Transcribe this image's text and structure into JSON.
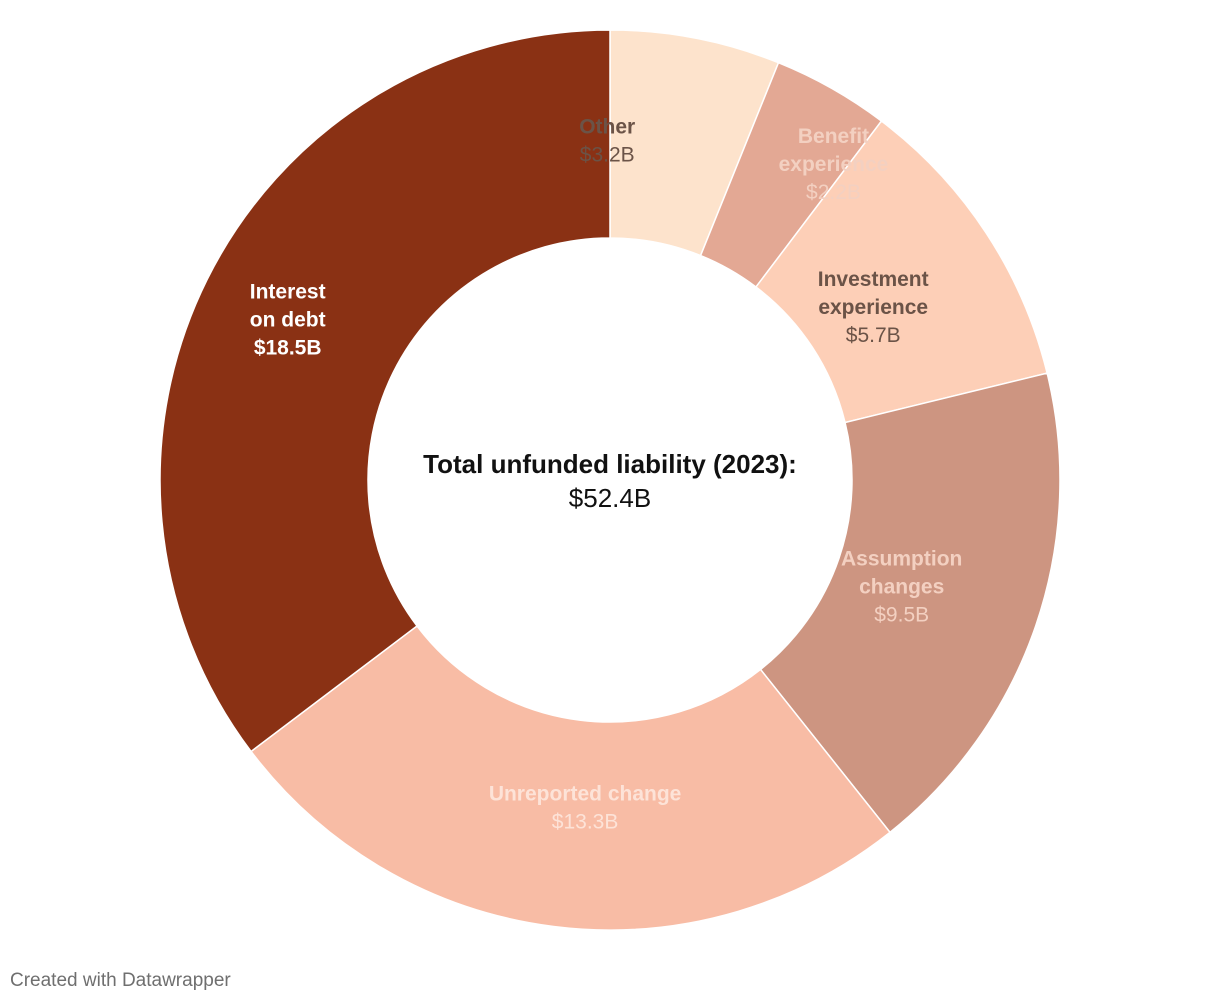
{
  "chart_data": {
    "type": "pie",
    "variant": "donut",
    "total_label": "Total unfunded liability (2023):",
    "total_value_label": "$52.4B",
    "slices": [
      {
        "name": "Other",
        "lines": [
          "Other"
        ],
        "value": 3.2,
        "value_label": "$3.2B",
        "color": "#fde3cc",
        "text_color": "#6b5347",
        "bold_value": false
      },
      {
        "name": "Benefit experience",
        "lines": [
          "Benefit",
          "experience"
        ],
        "value": 2.2,
        "value_label": "$2.2B",
        "color": "#e3a894",
        "text_color": "#f3d0c1",
        "bold_value": false
      },
      {
        "name": "Investment experience",
        "lines": [
          "Investment",
          "experience"
        ],
        "value": 5.7,
        "value_label": "$5.7B",
        "color": "#fdcfb7",
        "text_color": "#6b5347",
        "bold_value": false
      },
      {
        "name": "Assumption changes",
        "lines": [
          "Assumption",
          "changes"
        ],
        "value": 9.5,
        "value_label": "$9.5B",
        "color": "#cd9581",
        "text_color": "#f3d0c1",
        "bold_value": false
      },
      {
        "name": "Unreported change",
        "lines": [
          "Unreported change"
        ],
        "value": 13.3,
        "value_label": "$13.3B",
        "color": "#f8bca5",
        "text_color": "#fde3d8",
        "bold_value": false
      },
      {
        "name": "Interest on debt",
        "lines": [
          "Interest",
          "on debt"
        ],
        "value": 18.5,
        "value_label": "$18.5B",
        "color": "#8a3114",
        "text_color": "#ffffff",
        "bold_value": true
      }
    ]
  },
  "footer": {
    "credit": "Created with Datawrapper"
  }
}
